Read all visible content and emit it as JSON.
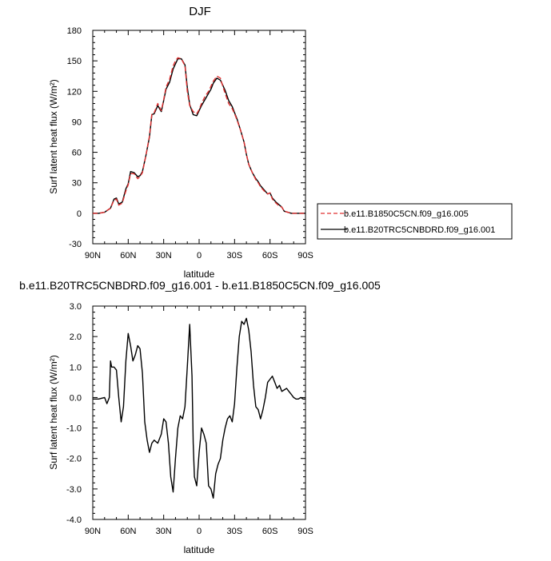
{
  "chart_data": [
    {
      "type": "line",
      "title": "DJF",
      "xlabel": "",
      "ylabel": "Surf latent heat flux (W/m²)",
      "ylim": [
        -30,
        180
      ],
      "yticks": [
        "-30",
        "0",
        "30",
        "60",
        "90",
        "120",
        "150",
        "180"
      ],
      "xlim": [
        90,
        -90
      ],
      "xticks": [
        "90N",
        "60N",
        "30N",
        "0",
        "30S",
        "60S",
        "90S"
      ],
      "legend": "right",
      "x": [
        90,
        85,
        80,
        75,
        72,
        70,
        68,
        65,
        62,
        60,
        58,
        55,
        52,
        50,
        48,
        45,
        42,
        40,
        38,
        35,
        32,
        30,
        28,
        25,
        22,
        20,
        18,
        15,
        12,
        10,
        8,
        5,
        2,
        0,
        -2,
        -5,
        -8,
        -10,
        -12,
        -15,
        -18,
        -20,
        -22,
        -25,
        -28,
        -30,
        -32,
        -35,
        -38,
        -40,
        -42,
        -45,
        -48,
        -50,
        -52,
        -55,
        -58,
        -60,
        -62,
        -65,
        -68,
        -70,
        -72,
        -75,
        -78,
        -80,
        -85,
        -90
      ],
      "series": [
        {
          "name": "b.e11.B1850C5CN.f09_g16.005",
          "color": "#e03030",
          "dash": true,
          "values": [
            0,
            0,
            1,
            5,
            13,
            14,
            8,
            10,
            22,
            28,
            39,
            39,
            34,
            36,
            40,
            57,
            76,
            98,
            99,
            108,
            101,
            112,
            124,
            132,
            145,
            150,
            153,
            152,
            145,
            120,
            106,
            100,
            98,
            102,
            108,
            115,
            120,
            125,
            130,
            135,
            133,
            125,
            118,
            108,
            103,
            98,
            92,
            82,
            70,
            58,
            48,
            40,
            33,
            30,
            26,
            22,
            19,
            20,
            14,
            10,
            7,
            6,
            2,
            1,
            0,
            0,
            0,
            0
          ]
        },
        {
          "name": "b.e11.B20TRC5CNBDRD.f09_g16.001",
          "color": "#000000",
          "dash": false,
          "values": [
            0,
            0,
            1,
            5,
            14,
            15,
            9,
            11,
            24,
            29,
            41,
            40,
            36,
            37,
            41,
            57,
            75,
            97,
            98,
            106,
            100,
            111,
            122,
            129,
            142,
            147,
            152,
            152,
            146,
            124,
            107,
            97,
            96,
            101,
            106,
            112,
            118,
            122,
            128,
            133,
            131,
            126,
            121,
            111,
            105,
            99,
            93,
            82,
            70,
            58,
            48,
            40,
            34,
            31,
            27,
            23,
            19,
            20,
            15,
            11,
            8,
            6,
            2,
            1,
            0,
            0,
            0,
            0
          ]
        }
      ]
    },
    {
      "type": "line",
      "title": "b.e11.B20TRC5CNBDRD.f09_g16.001 - b.e11.B1850C5CN.f09_g16.005",
      "xlabel": "latitude",
      "ylabel": "Surf latent heat flux (W/m²)",
      "ylim": [
        -4,
        3
      ],
      "yticks": [
        "-4.0",
        "-3.0",
        "-2.0",
        "-1.0",
        "0.0",
        "1.0",
        "2.0",
        "3.0"
      ],
      "xlim": [
        90,
        -90
      ],
      "xticks": [
        "90N",
        "60N",
        "30N",
        "0",
        "30S",
        "60S",
        "90S"
      ],
      "x": [
        90,
        85,
        80,
        78,
        76,
        75,
        74,
        72,
        70,
        68,
        66,
        64,
        62,
        60,
        58,
        56,
        54,
        52,
        50,
        48,
        46,
        44,
        42,
        40,
        38,
        35,
        32,
        30,
        28,
        26,
        24,
        22,
        20,
        18,
        16,
        14,
        12,
        10,
        8,
        6,
        5,
        4,
        2,
        0,
        -2,
        -4,
        -6,
        -8,
        -10,
        -12,
        -14,
        -16,
        -18,
        -20,
        -22,
        -24,
        -26,
        -28,
        -30,
        -32,
        -34,
        -36,
        -38,
        -40,
        -42,
        -44,
        -46,
        -48,
        -50,
        -52,
        -54,
        -56,
        -58,
        -60,
        -62,
        -64,
        -66,
        -68,
        -70,
        -72,
        -74,
        -76,
        -78,
        -80,
        -82,
        -84,
        -86,
        -88,
        -90
      ],
      "series": [
        {
          "name": "",
          "color": "#000000",
          "dash": false,
          "values": [
            -0.05,
            -0.05,
            0.0,
            -0.2,
            0.0,
            1.2,
            1.0,
            1.0,
            0.9,
            0.0,
            -0.8,
            -0.3,
            1.2,
            2.1,
            1.7,
            1.2,
            1.4,
            1.7,
            1.6,
            0.8,
            -0.8,
            -1.4,
            -1.8,
            -1.5,
            -1.4,
            -1.5,
            -1.2,
            -0.7,
            -0.8,
            -1.5,
            -2.6,
            -3.1,
            -2.0,
            -1.0,
            -0.6,
            -0.7,
            -0.3,
            1.0,
            2.4,
            0.7,
            -1.5,
            -2.6,
            -2.9,
            -1.8,
            -1.0,
            -1.2,
            -1.5,
            -2.9,
            -3.0,
            -3.3,
            -2.5,
            -2.2,
            -2.0,
            -1.4,
            -1.0,
            -0.7,
            -0.6,
            -0.8,
            -0.2,
            1.0,
            2.0,
            2.5,
            2.4,
            2.6,
            2.2,
            1.5,
            0.4,
            -0.3,
            -0.4,
            -0.7,
            -0.4,
            0.0,
            0.5,
            0.6,
            0.7,
            0.5,
            0.3,
            0.4,
            0.2,
            0.25,
            0.3,
            0.2,
            0.1,
            0.0,
            -0.05,
            -0.05,
            0.0,
            -0.05,
            -0.05
          ]
        }
      ]
    }
  ]
}
